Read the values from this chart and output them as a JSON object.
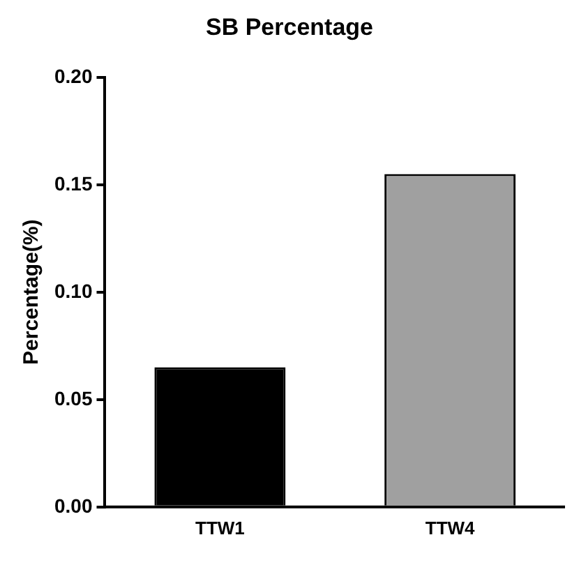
{
  "chart_data": {
    "type": "bar",
    "title": "SB Percentage",
    "ylabel": "Percentage(%)",
    "categories": [
      "TTW1",
      "TTW4"
    ],
    "values": [
      0.065,
      0.155
    ],
    "colors": [
      "#000000",
      "#a0a0a0"
    ],
    "ylim": [
      0,
      0.2
    ],
    "yticks": [
      {
        "value": 0,
        "label": "0.00"
      },
      {
        "value": 0.05,
        "label": "0.05"
      },
      {
        "value": 0.1,
        "label": "0.10"
      },
      {
        "value": 0.15,
        "label": "0.15"
      },
      {
        "value": 0.2,
        "label": "0.20"
      }
    ],
    "grid": false,
    "legend": false
  }
}
